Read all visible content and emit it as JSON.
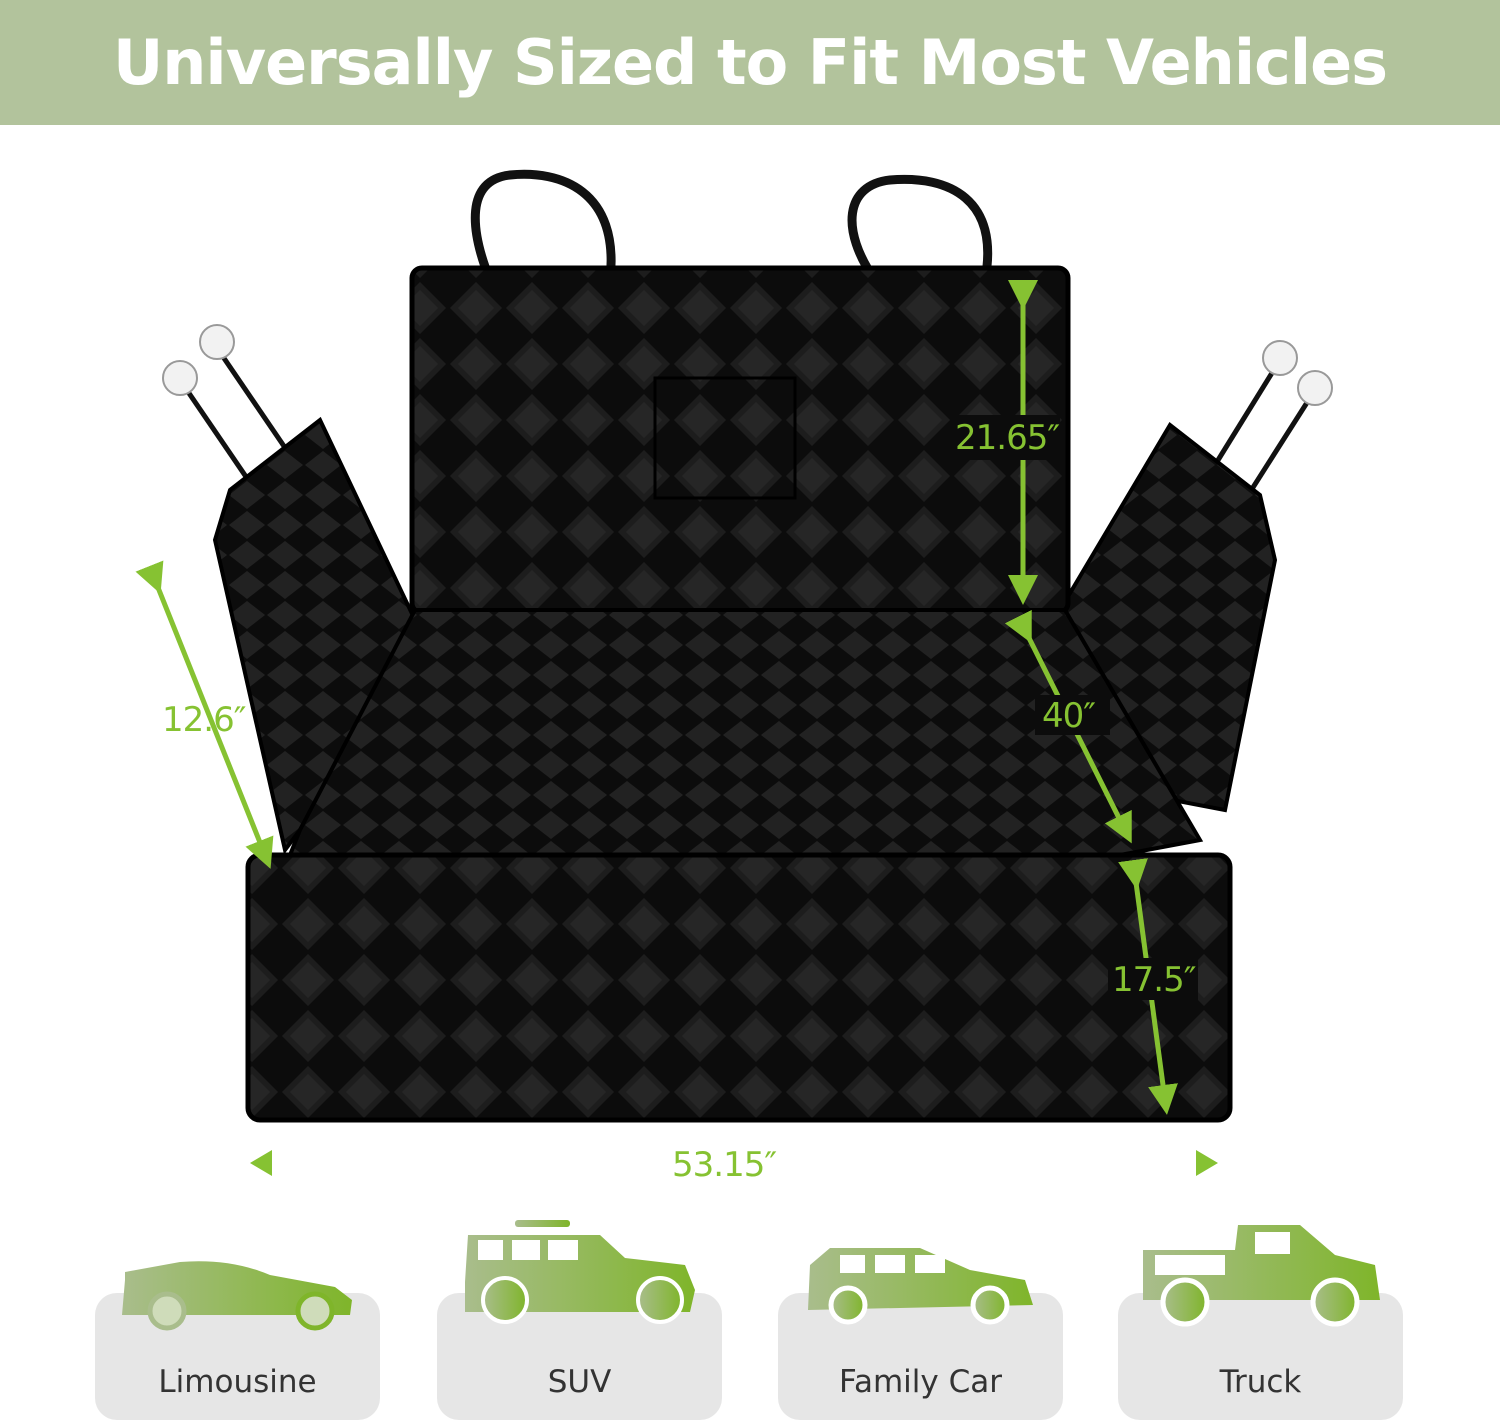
{
  "header": {
    "title": "Universally Sized to Fit Most Vehicles"
  },
  "dimensions": {
    "back_height": "21.65″",
    "seat_depth": "40″",
    "side_flap": "12.6″",
    "front_flap": "17.5″",
    "width": "53.15″"
  },
  "vehicles": [
    {
      "label": "Limousine",
      "icon": "sedan-icon"
    },
    {
      "label": "SUV",
      "icon": "suv-icon"
    },
    {
      "label": "Family Car",
      "icon": "hatchback-icon"
    },
    {
      "label": "Truck",
      "icon": "pickup-truck-icon"
    }
  ],
  "colors": {
    "header_bg": "#b2c39c",
    "accent_green": "#86c232",
    "card_bg": "#e6e6e6"
  }
}
